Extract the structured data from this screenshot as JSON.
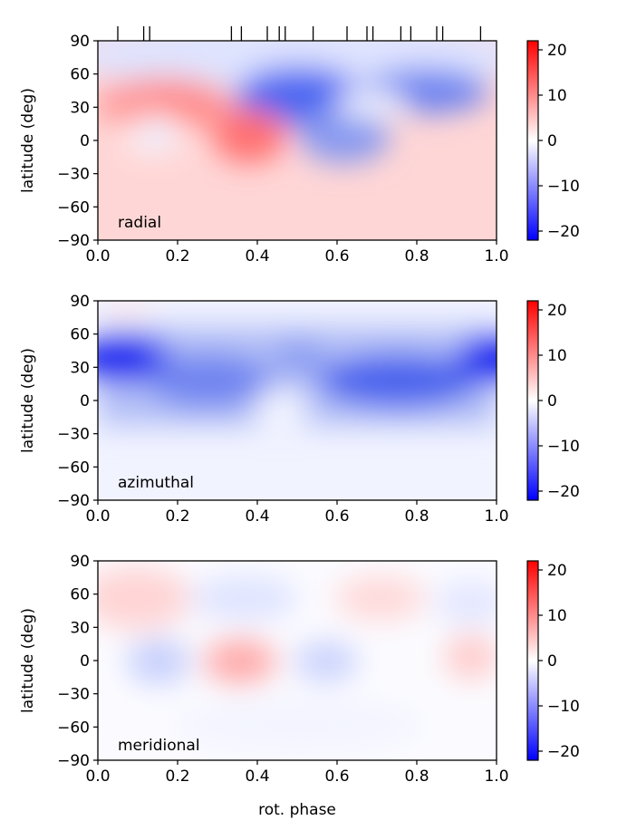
{
  "chart_data": [
    {
      "type": "heatmap",
      "name": "radial",
      "label": "radial",
      "xlabel": "",
      "ylabel": "latitude (deg)",
      "xlim": [
        0.0,
        1.0
      ],
      "ylim": [
        -90,
        90
      ],
      "x_ticks": [
        "0.0",
        "0.2",
        "0.4",
        "0.6",
        "0.8",
        "1.0"
      ],
      "y_ticks": [
        "90",
        "60",
        "30",
        "0",
        "−30",
        "−60",
        "−90"
      ],
      "colorbar_ticks": [
        "20",
        "10",
        "0",
        "−10",
        "−20"
      ],
      "clim": [
        -22,
        22
      ],
      "observation_phases": [
        0.05,
        0.115,
        0.13,
        0.335,
        0.36,
        0.425,
        0.455,
        0.47,
        0.54,
        0.625,
        0.675,
        0.69,
        0.76,
        0.785,
        0.85,
        0.865,
        0.96
      ],
      "features": [
        {
          "phase": 0.17,
          "lat": 35,
          "value": 9,
          "note": "positive band"
        },
        {
          "phase": 0.36,
          "lat": 5,
          "value": 11,
          "note": "positive spot"
        },
        {
          "phase": 0.15,
          "lat": 3,
          "value": -4,
          "note": "negative spot"
        },
        {
          "phase": 0.5,
          "lat": 45,
          "value": -12,
          "note": "negative cap"
        },
        {
          "phase": 0.88,
          "lat": 42,
          "value": -9,
          "note": "negative cap"
        },
        {
          "phase": 0.62,
          "lat": 8,
          "value": -7,
          "note": "negative lobe"
        },
        {
          "phase": 0.5,
          "lat": -60,
          "value": 3,
          "note": "weak positive south"
        }
      ]
    },
    {
      "type": "heatmap",
      "name": "azimuthal",
      "label": "azimuthal",
      "xlabel": "",
      "ylabel": "latitude (deg)",
      "xlim": [
        0.0,
        1.0
      ],
      "ylim": [
        -90,
        90
      ],
      "x_ticks": [
        "0.0",
        "0.2",
        "0.4",
        "0.6",
        "0.8",
        "1.0"
      ],
      "y_ticks": [
        "90",
        "60",
        "30",
        "0",
        "−30",
        "−60",
        "−90"
      ],
      "colorbar_ticks": [
        "20",
        "10",
        "0",
        "−10",
        "−20"
      ],
      "clim": [
        -22,
        22
      ],
      "features": [
        {
          "phase": 0.07,
          "lat": 38,
          "value": -20,
          "note": "strong negative"
        },
        {
          "phase": 1.0,
          "lat": 38,
          "value": -20,
          "note": "strong negative"
        },
        {
          "phase": 0.75,
          "lat": 15,
          "value": -14,
          "note": "negative band"
        },
        {
          "phase": 0.3,
          "lat": 30,
          "value": -9,
          "note": "negative band"
        },
        {
          "phase": 0.5,
          "lat": -55,
          "value": -2,
          "note": "weak negative south"
        },
        {
          "phase": 0.03,
          "lat": 85,
          "value": 3,
          "note": "weak positive polar"
        }
      ]
    },
    {
      "type": "heatmap",
      "name": "meridional",
      "label": "meridional",
      "xlabel": "rot. phase",
      "ylabel": "latitude (deg)",
      "xlim": [
        0.0,
        1.0
      ],
      "ylim": [
        -90,
        90
      ],
      "x_ticks": [
        "0.0",
        "0.2",
        "0.4",
        "0.6",
        "0.8",
        "1.0"
      ],
      "y_ticks": [
        "90",
        "60",
        "30",
        "0",
        "−30",
        "−60",
        "−90"
      ],
      "colorbar_ticks": [
        "20",
        "10",
        "0",
        "−10",
        "−20"
      ],
      "clim": [
        -22,
        22
      ],
      "features": [
        {
          "phase": 0.36,
          "lat": 2,
          "value": 6,
          "note": "positive spot"
        },
        {
          "phase": 0.15,
          "lat": 2,
          "value": -5,
          "note": "negative spot"
        },
        {
          "phase": 0.57,
          "lat": 2,
          "value": -5,
          "note": "negative spot"
        },
        {
          "phase": 0.7,
          "lat": 55,
          "value": 4,
          "note": "positive"
        },
        {
          "phase": 0.45,
          "lat": 55,
          "value": -5,
          "note": "negative"
        },
        {
          "phase": 0.95,
          "lat": 10,
          "value": 4,
          "note": "positive"
        },
        {
          "phase": 0.05,
          "lat": 55,
          "value": 4,
          "note": "positive"
        }
      ]
    }
  ]
}
